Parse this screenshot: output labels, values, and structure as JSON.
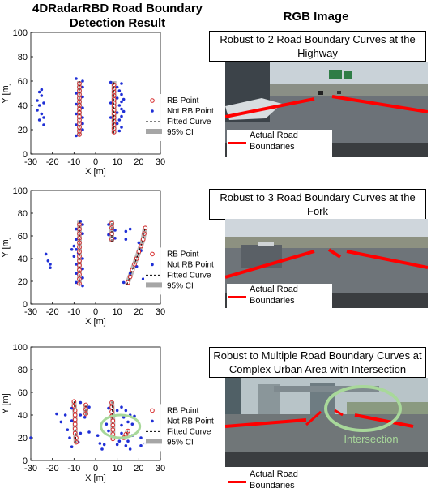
{
  "headers": {
    "left_title": "4DRadarRBD Road Boundary Detection Result",
    "right_title": "RGB Image"
  },
  "legend": {
    "rb_point": "RB Point",
    "not_rb_point": "Not RB Point",
    "fitted_curve": "Fitted Curve",
    "ci": "95% CI"
  },
  "colors": {
    "rb_point": "#d62728",
    "not_rb_point": "#1f2fd6",
    "fitted_curve": "#000000",
    "ci": "#a6a6a6",
    "boundary_line": "#ff0000",
    "intersection_circle": "#a8d89a"
  },
  "scenes": [
    {
      "caption": "Robust to 2 Road Boundary Curves at the Highway",
      "photo_legend": "Actual Road Boundaries",
      "photo_label": ""
    },
    {
      "caption": "Robust to 3 Road Boundary Curves at the Fork",
      "photo_legend": "Actual Road Boundaries",
      "photo_label": ""
    },
    {
      "caption": "Robust to Multiple Road Boundary Curves at Complex Urban Area with Intersection",
      "photo_legend": "Actual Road Boundaries",
      "photo_label": "Intersection"
    }
  ],
  "chart_data": [
    {
      "type": "scatter",
      "title": "",
      "xlabel": "X [m]",
      "ylabel": "Y [m]",
      "xlim": [
        -30,
        30
      ],
      "ylim": [
        0,
        100
      ],
      "xticks": [
        -30,
        -20,
        -10,
        0,
        10,
        20,
        30
      ],
      "yticks": [
        0,
        20,
        40,
        60,
        80,
        100
      ],
      "grid": false,
      "legend_position": "right",
      "curves": [
        {
          "x": [
            -7.5,
            -7.5
          ],
          "y": [
            15,
            60
          ]
        },
        {
          "x": [
            8.5,
            8.5
          ],
          "y": [
            17,
            60
          ]
        }
      ],
      "series": [
        {
          "name": "RB Point",
          "points": [
            [
              -7.5,
              16
            ],
            [
              -7.5,
              19
            ],
            [
              -7.5,
              22
            ],
            [
              -7.5,
              25
            ],
            [
              -7.5,
              28
            ],
            [
              -7.5,
              31
            ],
            [
              -7.5,
              34
            ],
            [
              -7.5,
              37
            ],
            [
              -7.5,
              40
            ],
            [
              -7.5,
              43
            ],
            [
              -7.5,
              46
            ],
            [
              -7.5,
              49
            ],
            [
              -7.5,
              52
            ],
            [
              -7.5,
              55
            ],
            [
              -7.5,
              58
            ],
            [
              8.5,
              18
            ],
            [
              8.5,
              21
            ],
            [
              8.5,
              24
            ],
            [
              8.5,
              27
            ],
            [
              8.5,
              30
            ],
            [
              8.5,
              33
            ],
            [
              8.5,
              36
            ],
            [
              8.5,
              39
            ],
            [
              8.5,
              42
            ],
            [
              8.5,
              45
            ],
            [
              8.5,
              48
            ],
            [
              8.5,
              51
            ],
            [
              8.5,
              54
            ],
            [
              8.5,
              57
            ]
          ]
        },
        {
          "name": "Not RB Point",
          "points": [
            [
              -26,
              51
            ],
            [
              -25,
              48
            ],
            [
              -27,
              44
            ],
            [
              -26,
              40
            ],
            [
              -24,
              42
            ],
            [
              -27,
              36
            ],
            [
              -25,
              33
            ],
            [
              -24,
              30
            ],
            [
              -26,
              28
            ],
            [
              -24,
              24
            ],
            [
              -25,
              53
            ],
            [
              -9,
              62
            ],
            [
              -6,
              60
            ],
            [
              -9,
              50
            ],
            [
              -6,
              47
            ],
            [
              -9,
              41
            ],
            [
              -6,
              38
            ],
            [
              -9,
              33
            ],
            [
              -6,
              30
            ],
            [
              -9,
              24
            ],
            [
              -6,
              20
            ],
            [
              -9,
              15
            ],
            [
              -6,
              55
            ],
            [
              -6,
              25
            ],
            [
              7,
              59
            ],
            [
              10,
              55
            ],
            [
              11,
              52
            ],
            [
              12,
              49
            ],
            [
              10,
              46
            ],
            [
              12,
              43
            ],
            [
              11,
              40
            ],
            [
              12,
              37
            ],
            [
              10,
              34
            ],
            [
              12,
              31
            ],
            [
              11,
              28
            ],
            [
              10,
              25
            ],
            [
              12,
              22
            ],
            [
              11,
              19
            ],
            [
              7,
              42
            ],
            [
              7,
              30
            ],
            [
              12,
              58
            ],
            [
              13,
              35
            ],
            [
              13,
              45
            ]
          ]
        }
      ]
    },
    {
      "type": "scatter",
      "title": "",
      "xlabel": "X [m]",
      "ylabel": "Y [m]",
      "xlim": [
        -30,
        30
      ],
      "ylim": [
        0,
        100
      ],
      "xticks": [
        -30,
        -20,
        -10,
        0,
        10,
        20,
        30
      ],
      "yticks": [
        0,
        20,
        40,
        60,
        80,
        100
      ],
      "grid": false,
      "legend_position": "right",
      "curves": [
        {
          "x": [
            -7.5,
            -7.5
          ],
          "y": [
            17,
            74
          ]
        },
        {
          "x": [
            7.5,
            7.5
          ],
          "y": [
            55,
            74
          ]
        },
        {
          "x": [
            14.5,
            17,
            19.5,
            22,
            23
          ],
          "y": [
            17,
            30,
            43,
            57,
            68
          ]
        }
      ],
      "series": [
        {
          "name": "RB Point",
          "points": [
            [
              -7.5,
              18
            ],
            [
              -7.5,
              22
            ],
            [
              -7.5,
              26
            ],
            [
              -7.5,
              30
            ],
            [
              -7.5,
              34
            ],
            [
              -7.5,
              38
            ],
            [
              -7.5,
              42
            ],
            [
              -7.5,
              46
            ],
            [
              -7.5,
              50
            ],
            [
              -7.5,
              54
            ],
            [
              -7.5,
              58
            ],
            [
              -7.5,
              62
            ],
            [
              -7.5,
              66
            ],
            [
              -7.5,
              70
            ],
            [
              7.5,
              57
            ],
            [
              7.5,
              62
            ],
            [
              7.5,
              67
            ],
            [
              7.5,
              71
            ],
            [
              15,
              19
            ],
            [
              16,
              24
            ],
            [
              17,
              30
            ],
            [
              18,
              35
            ],
            [
              19,
              40
            ],
            [
              20,
              46
            ],
            [
              21,
              51
            ],
            [
              22,
              57
            ],
            [
              22.5,
              62
            ],
            [
              23,
              67
            ]
          ]
        },
        {
          "name": "Not RB Point",
          "points": [
            [
              -23,
              44
            ],
            [
              -22,
              38
            ],
            [
              -21,
              35
            ],
            [
              -21,
              32
            ],
            [
              -10,
              51
            ],
            [
              -9,
              48
            ],
            [
              -11,
              48
            ],
            [
              -8,
              45
            ],
            [
              -10,
              42
            ],
            [
              -6,
              40
            ],
            [
              -9,
              35
            ],
            [
              -6,
              31
            ],
            [
              -9,
              27
            ],
            [
              -6,
              23
            ],
            [
              -9,
              19
            ],
            [
              -6,
              16
            ],
            [
              -9,
              57
            ],
            [
              -6,
              62
            ],
            [
              -9,
              66
            ],
            [
              -6,
              70
            ],
            [
              -7,
              73
            ],
            [
              6,
              70
            ],
            [
              9,
              65
            ],
            [
              6,
              61
            ],
            [
              9,
              58
            ],
            [
              14,
              64
            ],
            [
              14,
              57
            ],
            [
              16,
              66
            ],
            [
              20,
              54
            ],
            [
              21,
              47
            ],
            [
              19,
              33
            ],
            [
              16,
              27
            ],
            [
              13,
              19
            ],
            [
              22,
              22
            ]
          ]
        }
      ]
    },
    {
      "type": "scatter",
      "title": "",
      "xlabel": "X [m]",
      "ylabel": "Y [m]",
      "xlim": [
        -30,
        30
      ],
      "ylim": [
        0,
        100
      ],
      "xticks": [
        -30,
        -20,
        -10,
        0,
        10,
        20,
        30
      ],
      "yticks": [
        0,
        20,
        40,
        60,
        80,
        100
      ],
      "grid": false,
      "legend_position": "right",
      "annotation": {
        "type": "ellipse",
        "label": "",
        "cx": 11.5,
        "cy": 30,
        "rx": 9,
        "ry": 10
      },
      "curves": [
        {
          "x": [
            -9,
            -9.5,
            -9.5,
            -10
          ],
          "y": [
            15,
            28,
            40,
            52
          ]
        },
        {
          "x": [
            -4.5,
            -4.5
          ],
          "y": [
            40,
            50
          ]
        },
        {
          "x": [
            8,
            8,
            7.5
          ],
          "y": [
            18,
            35,
            52
          ]
        },
        {
          "x": [
            13,
            15
          ],
          "y": [
            19,
            26
          ]
        }
      ],
      "series": [
        {
          "name": "RB Point",
          "points": [
            [
              -9,
              16
            ],
            [
              -9,
              20
            ],
            [
              -9.5,
              24
            ],
            [
              -9.5,
              28
            ],
            [
              -9.5,
              32
            ],
            [
              -9.5,
              36
            ],
            [
              -9.5,
              40
            ],
            [
              -9.5,
              44
            ],
            [
              -10,
              48
            ],
            [
              -10,
              52
            ],
            [
              -4.5,
              41
            ],
            [
              -4.5,
              45
            ],
            [
              -4.5,
              49
            ],
            [
              8,
              19
            ],
            [
              8,
              23
            ],
            [
              8,
              27
            ],
            [
              8,
              31
            ],
            [
              8,
              35
            ],
            [
              7.5,
              39
            ],
            [
              7.5,
              43
            ],
            [
              7.5,
              47
            ],
            [
              7.5,
              51
            ],
            [
              13,
              20
            ],
            [
              14,
              23
            ],
            [
              15,
              26
            ]
          ]
        },
        {
          "name": "Not RB Point",
          "points": [
            [
              -30,
              20
            ],
            [
              -18,
              41
            ],
            [
              -16,
              34
            ],
            [
              -14,
              40
            ],
            [
              -13,
              27
            ],
            [
              -12,
              20
            ],
            [
              -11,
              12
            ],
            [
              -8,
              16
            ],
            [
              -7,
              24
            ],
            [
              -11,
              35
            ],
            [
              -7,
              40
            ],
            [
              -11,
              46
            ],
            [
              -7,
              51
            ],
            [
              -5,
              38
            ],
            [
              -3,
              47
            ],
            [
              -3,
              25
            ],
            [
              1,
              22
            ],
            [
              2,
              15
            ],
            [
              3,
              10
            ],
            [
              4,
              14
            ],
            [
              5,
              32
            ],
            [
              6,
              26
            ],
            [
              6,
              46
            ],
            [
              10,
              44
            ],
            [
              12,
              47
            ],
            [
              14,
              44
            ],
            [
              13,
              38
            ],
            [
              15,
              34
            ],
            [
              16,
              40
            ],
            [
              18,
              39
            ],
            [
              17,
              32
            ],
            [
              12,
              31
            ],
            [
              12,
              24
            ],
            [
              11,
              17
            ],
            [
              10,
              14
            ],
            [
              14,
              13
            ],
            [
              16,
              10
            ],
            [
              21,
              13
            ],
            [
              21,
              20
            ],
            [
              23,
              15
            ],
            [
              15,
              17
            ],
            [
              17,
              22
            ]
          ]
        }
      ]
    }
  ]
}
